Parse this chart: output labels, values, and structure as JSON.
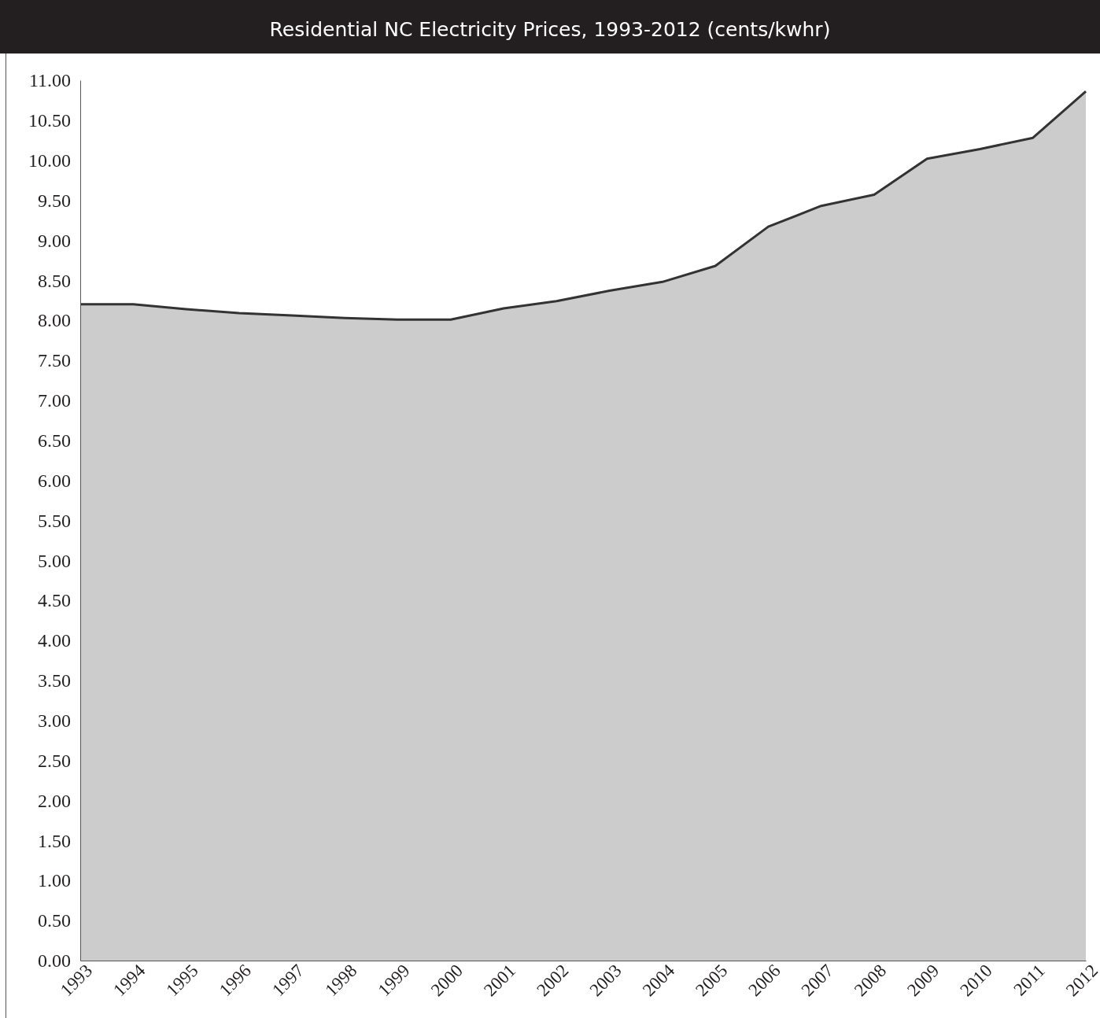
{
  "chart_data": {
    "type": "area",
    "title": "Residential NC Electricity Prices, 1993-2012 (cents/kwhr)",
    "categories": [
      "1993",
      "1994",
      "1995",
      "1996",
      "1997",
      "1998",
      "1999",
      "2000",
      "2001",
      "2002",
      "2003",
      "2004",
      "2005",
      "2006",
      "2007",
      "2008",
      "2009",
      "2010",
      "2011",
      "2012"
    ],
    "series": [
      {
        "color": "#cccccc",
        "values": [
          8.2,
          8.2,
          8.14,
          8.09,
          8.06,
          8.03,
          8.01,
          8.01,
          8.15,
          8.24,
          8.37,
          8.48,
          8.68,
          9.17,
          9.43,
          9.57,
          10.02,
          10.14,
          10.28,
          10.86
        ]
      }
    ],
    "ylim": [
      0,
      11
    ],
    "yticks": [
      {
        "value": 0,
        "label": "0.00"
      },
      {
        "value": 0.5,
        "label": "0.50"
      },
      {
        "value": 1,
        "label": "1.00"
      },
      {
        "value": 1.5,
        "label": "1.50"
      },
      {
        "value": 2,
        "label": "2.00"
      },
      {
        "value": 2.5,
        "label": "2.50"
      },
      {
        "value": 3,
        "label": "3.00"
      },
      {
        "value": 3.5,
        "label": "3.50"
      },
      {
        "value": 4,
        "label": "4.00"
      },
      {
        "value": 4.5,
        "label": "4.50"
      },
      {
        "value": 5,
        "label": "5.00"
      },
      {
        "value": 5.5,
        "label": "5.50"
      },
      {
        "value": 6,
        "label": "6.00"
      },
      {
        "value": 6.5,
        "label": "6.50"
      },
      {
        "value": 7,
        "label": "7.00"
      },
      {
        "value": 7.5,
        "label": "7.50"
      },
      {
        "value": 8,
        "label": "8.00"
      },
      {
        "value": 8.5,
        "label": "8.50"
      },
      {
        "value": 9,
        "label": "9.00"
      },
      {
        "value": 9.5,
        "label": "9.50"
      },
      {
        "value": 10,
        "label": "10.00"
      },
      {
        "value": 10.5,
        "label": "10.50"
      },
      {
        "value": 11,
        "label": "11.00"
      }
    ],
    "grid": false
  }
}
